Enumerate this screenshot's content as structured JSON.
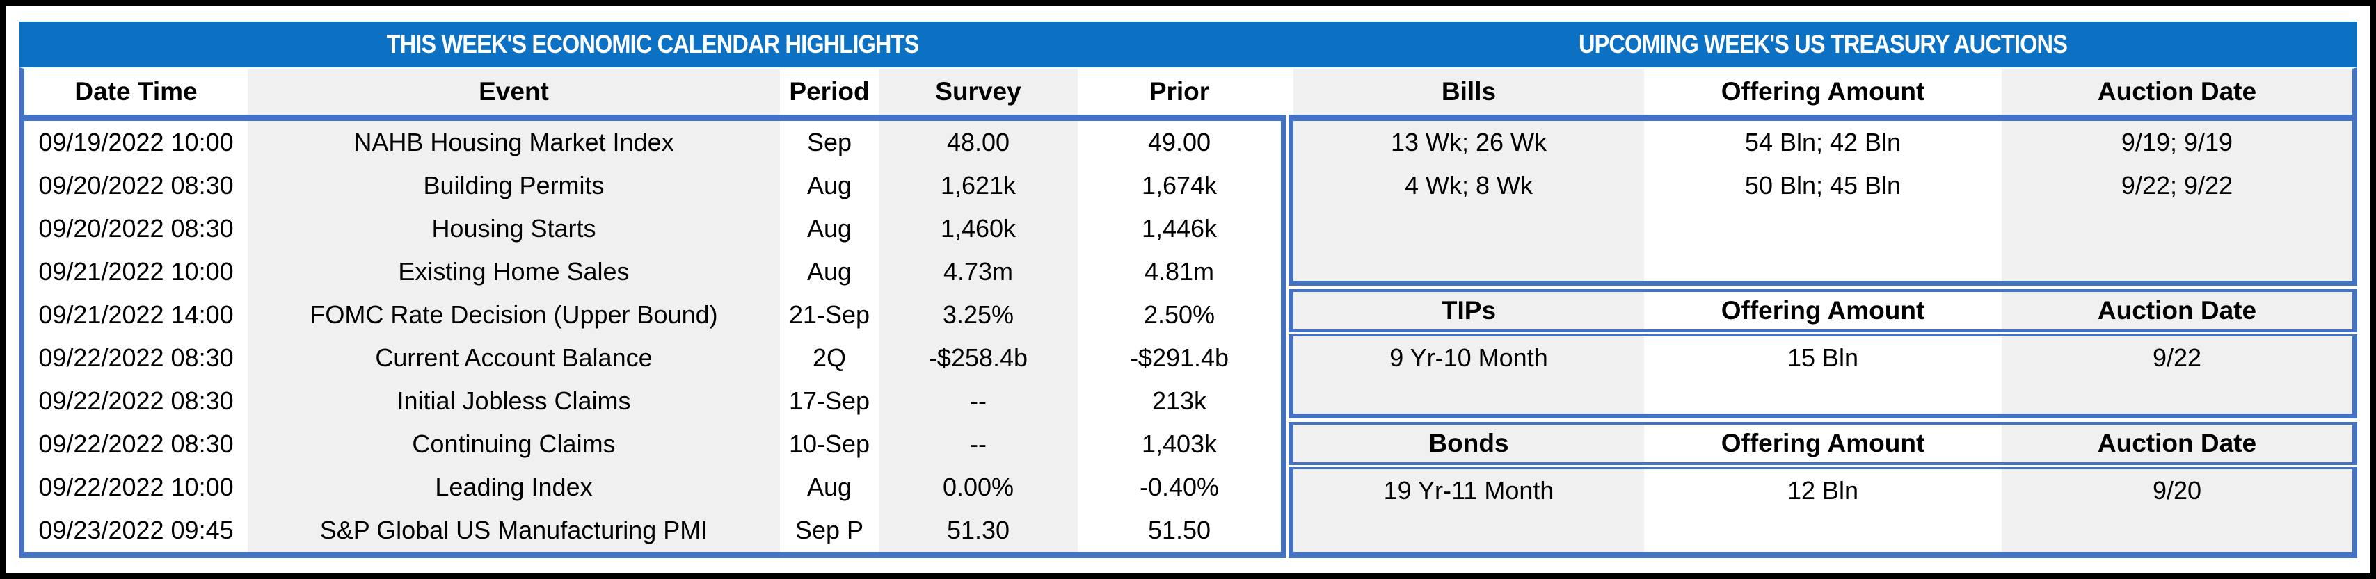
{
  "titles": {
    "left": "THIS WEEK'S ECONOMIC CALENDAR HIGHLIGHTS",
    "right": "UPCOMING WEEK'S US TREASURY AUCTIONS"
  },
  "calendar": {
    "columns": [
      "Date Time",
      "Event",
      "Period",
      "Survey",
      "Prior"
    ],
    "rows": [
      [
        "09/19/2022 10:00",
        "NAHB Housing Market Index",
        "Sep",
        "48.00",
        "49.00"
      ],
      [
        "09/20/2022 08:30",
        "Building Permits",
        "Aug",
        "1,621k",
        "1,674k"
      ],
      [
        "09/20/2022 08:30",
        "Housing Starts",
        "Aug",
        "1,460k",
        "1,446k"
      ],
      [
        "09/21/2022 10:00",
        "Existing Home Sales",
        "Aug",
        "4.73m",
        "4.81m"
      ],
      [
        "09/21/2022 14:00",
        "FOMC Rate Decision (Upper Bound)",
        "21-Sep",
        "3.25%",
        "2.50%"
      ],
      [
        "09/22/2022 08:30",
        "Current Account Balance",
        "2Q",
        "-$258.4b",
        "-$291.4b"
      ],
      [
        "09/22/2022 08:30",
        "Initial Jobless Claims",
        "17-Sep",
        "--",
        "213k"
      ],
      [
        "09/22/2022 08:30",
        "Continuing Claims",
        "10-Sep",
        "--",
        "1,403k"
      ],
      [
        "09/22/2022 10:00",
        "Leading Index",
        "Aug",
        "0.00%",
        "-0.40%"
      ],
      [
        "09/23/2022 09:45",
        "S&P Global US Manufacturing PMI",
        "Sep P",
        "51.30",
        "51.50"
      ]
    ]
  },
  "auctions": {
    "bills": {
      "columns": [
        "Bills",
        "Offering Amount",
        "Auction Date"
      ],
      "rows": [
        [
          "13 Wk; 26 Wk",
          "54 Bln; 42 Bln",
          "9/19; 9/19"
        ],
        [
          "4 Wk; 8 Wk",
          "50 Bln; 45 Bln",
          "9/22; 9/22"
        ]
      ]
    },
    "tips": {
      "columns": [
        "TIPs",
        "Offering Amount",
        "Auction Date"
      ],
      "rows": [
        [
          "9 Yr-10 Month",
          "15 Bln",
          "9/22"
        ]
      ]
    },
    "bonds": {
      "columns": [
        "Bonds",
        "Offering Amount",
        "Auction Date"
      ],
      "rows": [
        [
          "19 Yr-11 Month",
          "12 Bln",
          "9/20"
        ]
      ]
    }
  },
  "colors": {
    "title_bar": "#0d71c3",
    "border": "#4472c4",
    "stripe": "#f0f0f0",
    "frame": "#000000"
  }
}
